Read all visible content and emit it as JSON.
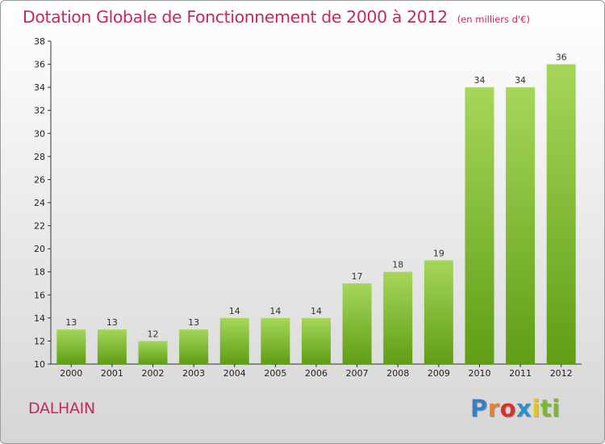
{
  "header": {
    "title": "Dotation Globale de Fonctionnement de 2000 à 2012",
    "unit": "(en milliers d'€)"
  },
  "footer": {
    "commune": "DALHAIN",
    "logo_text": "Proxiti",
    "logo_colors": [
      "#3a7fc1",
      "#e8812a",
      "#d6332b",
      "#2f8fc7",
      "#e8c21e",
      "#7cb82f",
      "#7cb82f"
    ]
  },
  "colors": {
    "title": "#c8285a",
    "bar_light": "#a6d65a",
    "bar_dark": "#5f9e16",
    "axis": "#333333"
  },
  "chart_data": {
    "type": "bar",
    "title": "Dotation Globale de Fonctionnement de 2000 à 2012",
    "categories": [
      "2000",
      "2001",
      "2002",
      "2003",
      "2004",
      "2005",
      "2006",
      "2007",
      "2008",
      "2009",
      "2010",
      "2011",
      "2012"
    ],
    "values": [
      13,
      13,
      12,
      13,
      14,
      14,
      14,
      17,
      18,
      19,
      34,
      34,
      36
    ],
    "ylim": [
      10,
      38
    ],
    "yticks": [
      10,
      12,
      14,
      16,
      18,
      20,
      22,
      24,
      26,
      28,
      30,
      32,
      34,
      36,
      38
    ],
    "grid": false
  }
}
